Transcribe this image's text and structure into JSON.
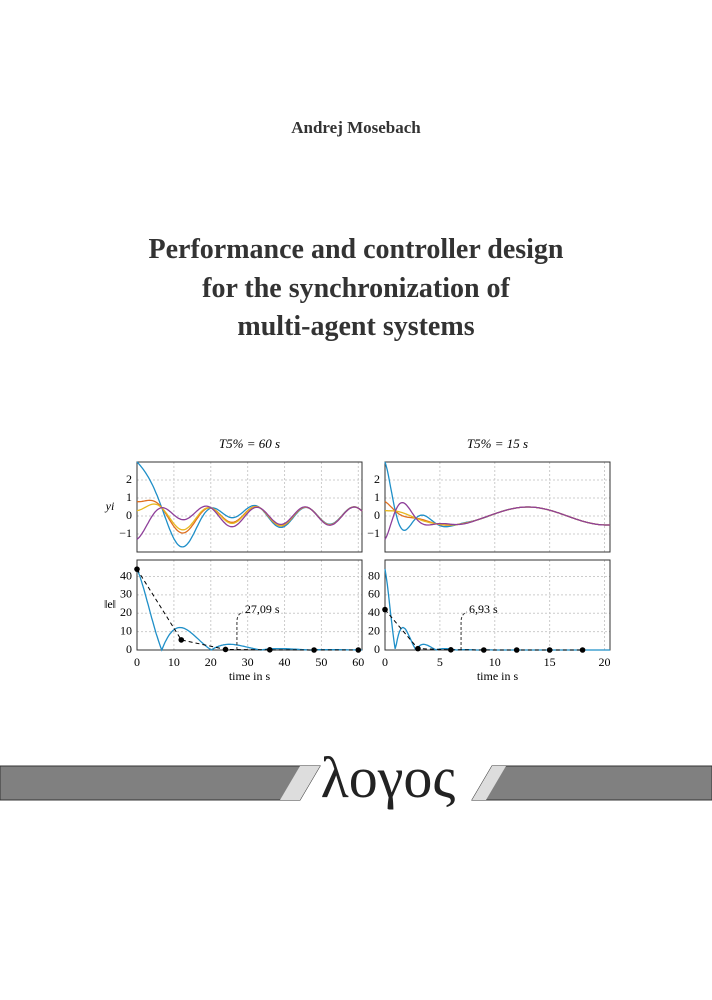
{
  "author": "Andrej Mosebach",
  "title_lines": [
    "Performance and controller design",
    "for the synchronization of",
    "multi-agent systems"
  ],
  "figure": {
    "panels": [
      {
        "title": "T5% = 60 s",
        "xlim": [
          0,
          61
        ],
        "xticks": [
          0,
          10,
          20,
          30,
          40,
          50,
          60
        ],
        "xlabel": "time in s",
        "top": {
          "ylim": [
            -2,
            3
          ],
          "yticks": [
            2,
            1,
            0,
            {
              "value": -1,
              "label": "−1"
            }
          ],
          "ylabel": "yi"
        },
        "bottom": {
          "ylim": [
            0,
            49
          ],
          "yticks": [
            0,
            10,
            20,
            30,
            40
          ],
          "ylabel": "‖e‖",
          "settling": {
            "value": 27.09,
            "label": "27,09 s"
          },
          "samples": {
            "x": [
              0,
              12,
              24,
              36,
              48,
              60
            ],
            "values": [
              44,
              5.5,
              0.3,
              0.1,
              0,
              0
            ]
          }
        }
      },
      {
        "title": "T5% = 15 s",
        "xlim": [
          0,
          20.5
        ],
        "xticks": [
          0,
          5,
          10,
          15,
          20
        ],
        "xlabel": "time in s",
        "top": {
          "ylim": [
            -2,
            3
          ],
          "yticks": [
            2,
            1,
            0,
            {
              "value": -1,
              "label": "−1"
            }
          ],
          "ylabel": ""
        },
        "bottom": {
          "ylim": [
            0,
            98
          ],
          "yticks": [
            0,
            20,
            40,
            60,
            80
          ],
          "ylabel": "",
          "settling": {
            "value": 6.93,
            "label": "6,93 s"
          },
          "samples": {
            "x": [
              0,
              3,
              6,
              9,
              12,
              15,
              18
            ],
            "values": [
              44,
              1.5,
              0.2,
              0,
              0,
              0,
              0
            ]
          }
        }
      }
    ]
  },
  "publisher": "λογος"
}
